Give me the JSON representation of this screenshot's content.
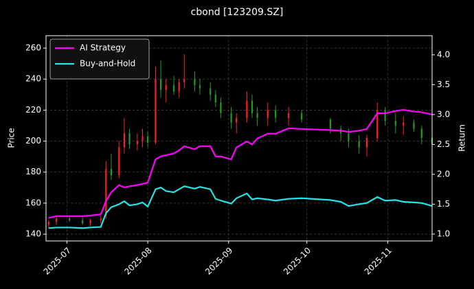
{
  "chart_data": {
    "type": "candlestick",
    "title": "cbond [123209.SZ]",
    "ylabel": "Price",
    "y2label": "Return",
    "x": [
      "2025-06-24",
      "2025-06-27",
      "2025-07-02",
      "2025-07-07",
      "2025-07-10",
      "2025-07-14",
      "2025-07-16",
      "2025-07-18",
      "2025-07-21",
      "2025-07-23",
      "2025-07-25",
      "2025-07-28",
      "2025-07-30",
      "2025-08-01",
      "2025-08-04",
      "2025-08-06",
      "2025-08-08",
      "2025-08-11",
      "2025-08-13",
      "2025-08-15",
      "2025-08-19",
      "2025-08-21",
      "2025-08-25",
      "2025-08-27",
      "2025-08-29",
      "2025-09-02",
      "2025-09-04",
      "2025-09-08",
      "2025-09-10",
      "2025-09-12",
      "2025-09-16",
      "2025-09-19",
      "2025-09-24",
      "2025-09-29",
      "2025-10-10",
      "2025-10-14",
      "2025-10-17",
      "2025-10-21",
      "2025-10-24",
      "2025-10-28",
      "2025-10-31",
      "2025-11-04",
      "2025-11-07",
      "2025-11-11",
      "2025-11-14",
      "2025-11-18"
    ],
    "open": [
      146,
      148,
      150,
      149,
      147,
      149,
      152,
      182,
      178,
      196,
      205,
      198,
      200,
      203,
      199,
      240,
      233,
      236,
      232,
      238,
      240,
      236,
      234,
      230,
      225,
      218,
      212,
      215,
      226,
      218,
      215,
      220,
      215,
      218,
      214,
      208,
      205,
      200,
      196,
      202,
      220,
      213,
      210,
      212,
      208,
      202
    ],
    "high": [
      149,
      151,
      152,
      151,
      150,
      152,
      187,
      192,
      200,
      215,
      208,
      205,
      208,
      206,
      248,
      252,
      240,
      242,
      240,
      256,
      245,
      240,
      238,
      233,
      228,
      222,
      218,
      232,
      230,
      222,
      225,
      223,
      222,
      220,
      215,
      210,
      208,
      204,
      204,
      225,
      222,
      218,
      216,
      214,
      210,
      205
    ],
    "low": [
      144,
      146,
      148,
      146,
      145,
      147,
      150,
      175,
      176,
      192,
      195,
      194,
      196,
      196,
      198,
      228,
      225,
      230,
      228,
      234,
      232,
      230,
      226,
      222,
      215,
      208,
      205,
      212,
      215,
      210,
      210,
      212,
      210,
      212,
      205,
      200,
      196,
      192,
      190,
      200,
      210,
      205,
      204,
      206,
      198,
      195
    ],
    "close": [
      148,
      150,
      149,
      147,
      149,
      150,
      182,
      178,
      196,
      205,
      198,
      200,
      203,
      199,
      240,
      233,
      236,
      232,
      238,
      240,
      236,
      234,
      230,
      225,
      218,
      212,
      215,
      226,
      218,
      215,
      220,
      215,
      218,
      214,
      208,
      205,
      200,
      196,
      202,
      220,
      213,
      210,
      212,
      208,
      202,
      198
    ],
    "up_color": "#ff2020",
    "down_color": "#1f9f1f",
    "series": [
      {
        "name": "AI Strategy",
        "color": "#ff00ff",
        "axis": "y2",
        "values": [
          1.27,
          1.3,
          1.3,
          1.3,
          1.31,
          1.33,
          1.55,
          1.7,
          1.82,
          1.78,
          1.8,
          1.82,
          1.84,
          1.86,
          2.25,
          2.3,
          2.32,
          2.35,
          2.4,
          2.47,
          2.42,
          2.47,
          2.47,
          2.3,
          2.3,
          2.25,
          2.45,
          2.55,
          2.5,
          2.6,
          2.68,
          2.68,
          2.77,
          2.76,
          2.74,
          2.73,
          2.71,
          2.73,
          2.76,
          3.02,
          3.02,
          3.06,
          3.08,
          3.05,
          3.04,
          3.0
        ]
      },
      {
        "name": "Buy-and-Hold",
        "color": "#22e6e6",
        "axis": "y2",
        "values": [
          1.1,
          1.11,
          1.11,
          1.1,
          1.11,
          1.12,
          1.35,
          1.45,
          1.5,
          1.55,
          1.48,
          1.5,
          1.53,
          1.46,
          1.75,
          1.78,
          1.72,
          1.7,
          1.75,
          1.8,
          1.76,
          1.79,
          1.75,
          1.59,
          1.56,
          1.51,
          1.6,
          1.68,
          1.58,
          1.6,
          1.58,
          1.56,
          1.59,
          1.6,
          1.57,
          1.54,
          1.47,
          1.5,
          1.52,
          1.62,
          1.56,
          1.57,
          1.54,
          1.53,
          1.52,
          1.47
        ]
      }
    ],
    "xlim": [
      "2025-06-23",
      "2025-11-18"
    ],
    "xticks": [
      {
        "value": "2025-07-01",
        "label": "2025-07"
      },
      {
        "value": "2025-08-01",
        "label": "2025-08"
      },
      {
        "value": "2025-09-01",
        "label": "2025-09"
      },
      {
        "value": "2025-10-01",
        "label": "2025-10"
      },
      {
        "value": "2025-11-01",
        "label": "2025-11"
      }
    ],
    "ylim": [
      135.6,
      268
    ],
    "yticks": [
      140,
      160,
      180,
      200,
      220,
      240,
      260
    ],
    "y2lim": [
      0.885,
      4.32
    ],
    "y2ticks": [
      {
        "value": 1,
        "label": "1.0"
      },
      1.5,
      {
        "value": 2,
        "label": "2.0"
      },
      2.5,
      {
        "value": 3,
        "label": "3.0"
      },
      3.5,
      {
        "value": 4,
        "label": "4.0"
      }
    ],
    "grid": true,
    "legend_loc": "upper left"
  }
}
